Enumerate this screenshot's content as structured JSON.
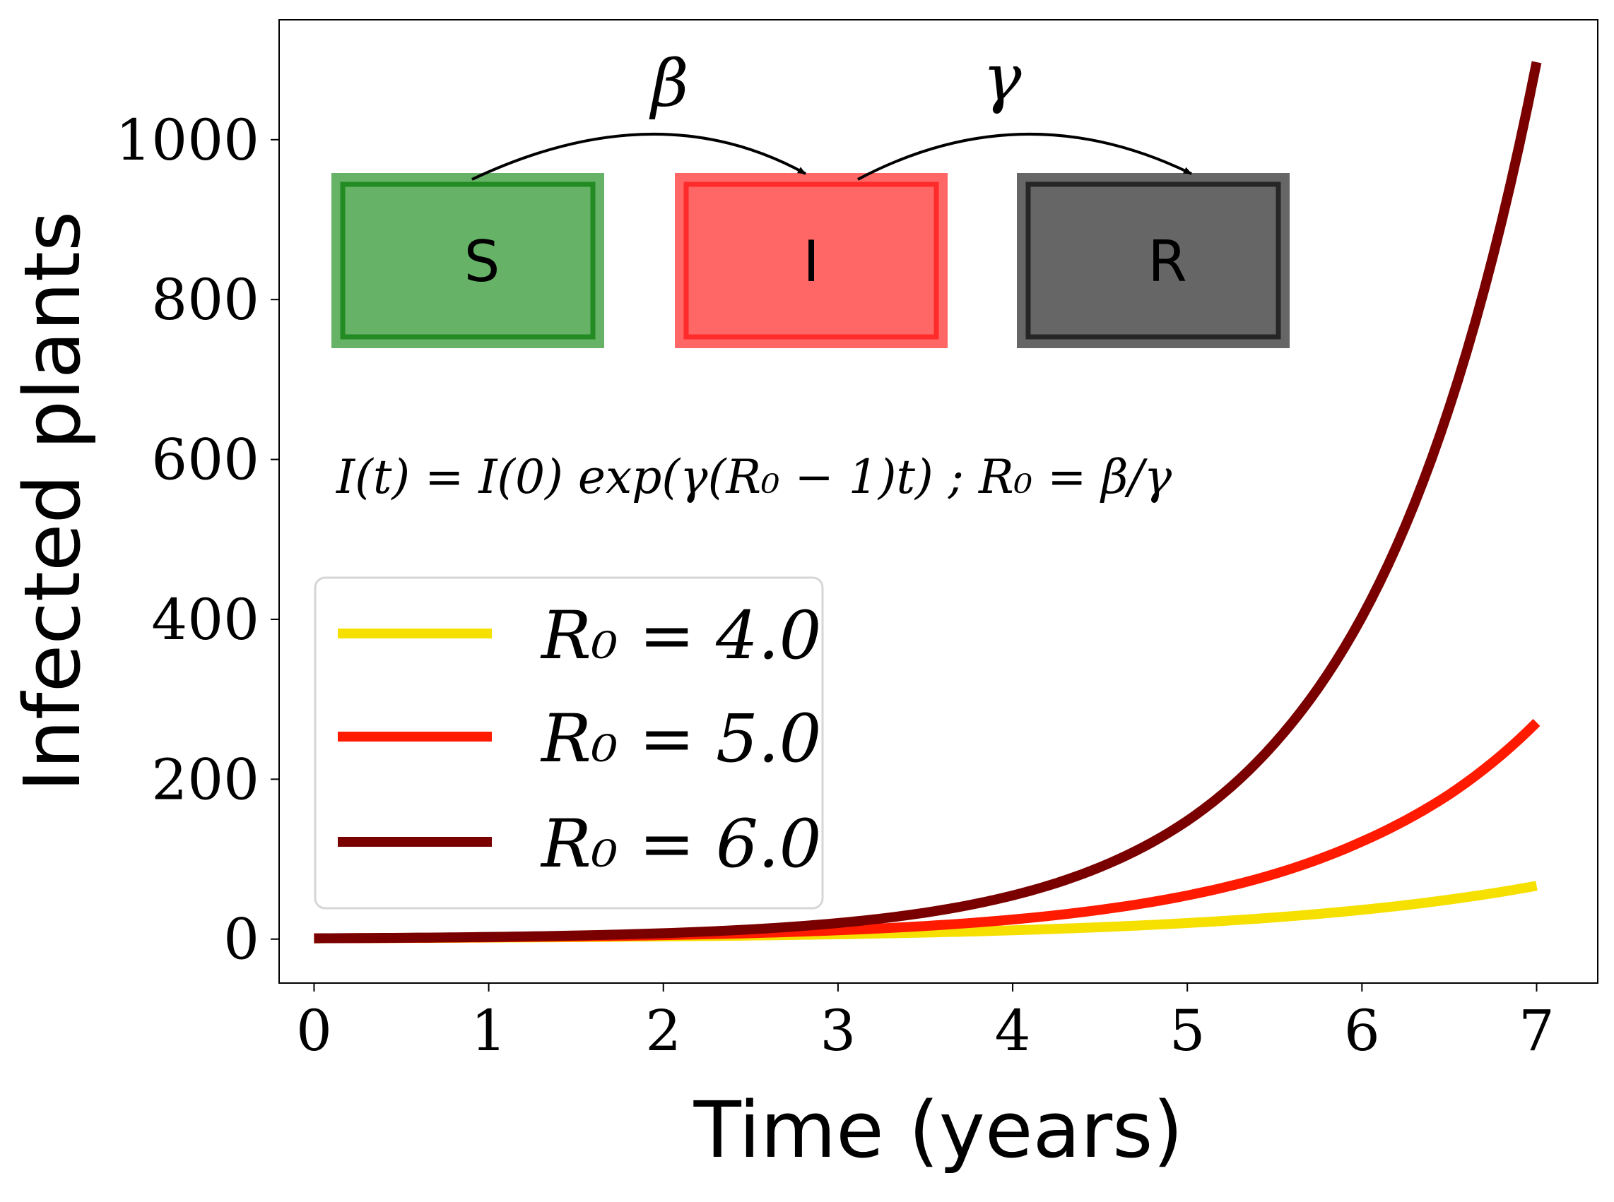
{
  "chart_data": {
    "type": "line",
    "xlabel": "Time (years)",
    "ylabel": "Infected plants",
    "xlim": [
      -0.2,
      7.35
    ],
    "ylim": [
      -55,
      1150
    ],
    "xticks": [
      0,
      1,
      2,
      3,
      4,
      5,
      6,
      7
    ],
    "yticks": [
      0,
      200,
      400,
      600,
      800,
      1000
    ],
    "grid": false,
    "legend_position": "lower-left",
    "formula": "I(t) = I(0) exp(γ(R₀ − 1)t) ; R₀ = β/γ",
    "diagram": {
      "compartments": [
        {
          "label": "S",
          "fill": "#66b266",
          "edge": "#228b22"
        },
        {
          "label": "I",
          "fill": "#ff6666",
          "edge": "#ff2a2a"
        },
        {
          "label": "R",
          "fill": "#666666",
          "edge": "#262626"
        }
      ],
      "transitions": [
        "β",
        "γ"
      ]
    },
    "series": [
      {
        "name": "R₀ = 4.0",
        "color": "#f5e000",
        "x": [
          0,
          0.5,
          1,
          1.5,
          2,
          2.5,
          3,
          3.5,
          4,
          4.5,
          5,
          5.5,
          6,
          6.5,
          7
        ],
        "y": [
          1.0,
          1.35,
          1.82,
          2.46,
          3.32,
          4.48,
          6.05,
          8.17,
          11.0,
          14.9,
          20.1,
          27.1,
          36.6,
          49.4,
          66.7
        ]
      },
      {
        "name": "R₀ = 5.0",
        "color": "#ff1a00",
        "x": [
          0,
          0.5,
          1,
          1.5,
          2,
          2.5,
          3,
          3.5,
          4,
          4.5,
          5,
          5.5,
          6,
          6.5,
          7
        ],
        "y": [
          1.0,
          1.49,
          2.23,
          3.32,
          4.95,
          7.39,
          11.0,
          16.4,
          24.5,
          36.6,
          54.6,
          81.5,
          122,
          181,
          271
        ]
      },
      {
        "name": "R₀ = 6.0",
        "color": "#7a0000",
        "x": [
          0,
          0.5,
          1,
          1.5,
          2,
          2.5,
          3,
          3.5,
          4,
          4.5,
          5,
          5.5,
          6,
          6.5,
          7
        ],
        "y": [
          1.0,
          1.65,
          2.72,
          4.48,
          7.39,
          12.2,
          20.1,
          33.1,
          54.6,
          90.0,
          148,
          245,
          403,
          665,
          1097
        ]
      }
    ]
  }
}
